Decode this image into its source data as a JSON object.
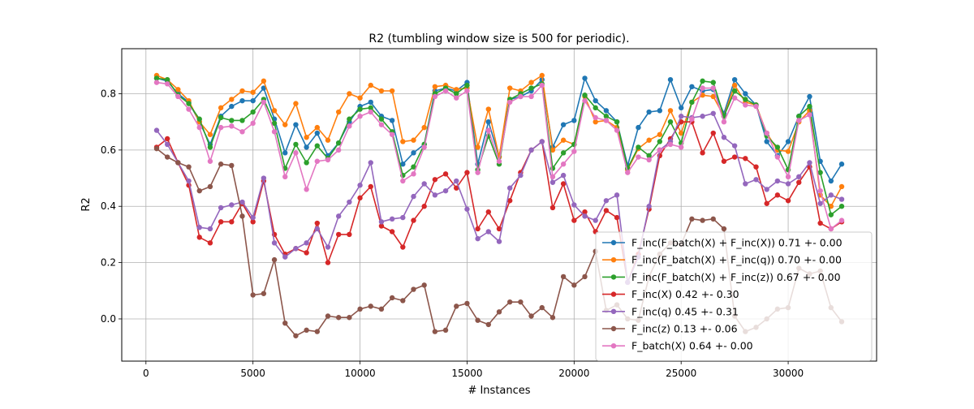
{
  "chart_data": {
    "type": "line",
    "title": "R2 (tumbling window size is 500 for periodic).",
    "xlabel": "# Instances",
    "ylabel": "R2",
    "xlim": [
      -1130,
      34130
    ],
    "ylim": [
      -0.15,
      0.96
    ],
    "xticks": [
      0,
      5000,
      10000,
      15000,
      20000,
      25000,
      30000
    ],
    "xtick_labels": [
      "0",
      "5000",
      "10000",
      "15000",
      "20000",
      "25000",
      "30000"
    ],
    "yticks": [
      0.0,
      0.2,
      0.4,
      0.6,
      0.8
    ],
    "ytick_labels": [
      "0.0",
      "0.2",
      "0.4",
      "0.6",
      "0.8"
    ],
    "grid": true,
    "legend_position": "lower right",
    "x": [
      500,
      1000,
      1500,
      2000,
      2500,
      3000,
      3500,
      4000,
      4500,
      5000,
      5500,
      6000,
      6500,
      7000,
      7500,
      8000,
      8500,
      9000,
      9500,
      10000,
      10500,
      11000,
      11500,
      12000,
      12500,
      13000,
      13500,
      14000,
      14500,
      15000,
      15500,
      16000,
      16500,
      17000,
      17500,
      18000,
      18500,
      19000,
      19500,
      20000,
      20500,
      21000,
      21500,
      22000,
      22500,
      23000,
      23500,
      24000,
      24500,
      25000,
      25500,
      26000,
      26500,
      27000,
      27500,
      28000,
      28500,
      29000,
      29500,
      30000,
      30500,
      31000,
      31500,
      32000,
      32500
    ],
    "series": [
      {
        "name": "F_inc(F_batch(X) + F_inc(X)) 0.71 +- 0.00",
        "color": "#1f77b4",
        "values": [
          0.855,
          0.845,
          0.8,
          0.77,
          0.7,
          0.62,
          0.72,
          0.755,
          0.775,
          0.775,
          0.82,
          0.71,
          0.59,
          0.69,
          0.61,
          0.66,
          0.58,
          0.625,
          0.7,
          0.755,
          0.77,
          0.72,
          0.705,
          0.55,
          0.59,
          0.62,
          0.81,
          0.82,
          0.81,
          0.84,
          0.55,
          0.7,
          0.575,
          0.78,
          0.79,
          0.81,
          0.85,
          0.61,
          0.69,
          0.705,
          0.855,
          0.775,
          0.74,
          0.7,
          0.545,
          0.68,
          0.735,
          0.74,
          0.85,
          0.75,
          0.825,
          0.81,
          0.815,
          0.73,
          0.85,
          0.8,
          0.76,
          0.63,
          0.58,
          0.63,
          0.72,
          0.79,
          0.56,
          0.49,
          0.55
        ]
      },
      {
        "name": "F_inc(F_batch(X) + F_inc(q)) 0.70 +- 0.00",
        "color": "#ff7f0e",
        "values": [
          0.865,
          0.85,
          0.815,
          0.775,
          0.7,
          0.655,
          0.75,
          0.78,
          0.81,
          0.805,
          0.845,
          0.74,
          0.69,
          0.765,
          0.645,
          0.68,
          0.635,
          0.735,
          0.8,
          0.785,
          0.83,
          0.81,
          0.81,
          0.63,
          0.635,
          0.68,
          0.825,
          0.83,
          0.815,
          0.82,
          0.61,
          0.745,
          0.575,
          0.82,
          0.81,
          0.84,
          0.865,
          0.6,
          0.635,
          0.62,
          0.79,
          0.7,
          0.705,
          0.68,
          0.53,
          0.605,
          0.635,
          0.655,
          0.74,
          0.66,
          0.77,
          0.795,
          0.79,
          0.72,
          0.83,
          0.77,
          0.76,
          0.66,
          0.6,
          0.595,
          0.7,
          0.74,
          0.44,
          0.4,
          0.47
        ]
      },
      {
        "name": "F_inc(F_batch(X) + F_inc(z)) 0.67 +- 0.00",
        "color": "#2ca02c",
        "values": [
          0.855,
          0.85,
          0.795,
          0.765,
          0.71,
          0.61,
          0.715,
          0.705,
          0.705,
          0.735,
          0.78,
          0.695,
          0.535,
          0.62,
          0.555,
          0.615,
          0.57,
          0.625,
          0.71,
          0.745,
          0.75,
          0.71,
          0.665,
          0.51,
          0.54,
          0.62,
          0.8,
          0.82,
          0.8,
          0.83,
          0.53,
          0.65,
          0.55,
          0.78,
          0.8,
          0.82,
          0.835,
          0.535,
          0.59,
          0.62,
          0.795,
          0.75,
          0.72,
          0.7,
          0.535,
          0.61,
          0.58,
          0.63,
          0.7,
          0.625,
          0.77,
          0.845,
          0.84,
          0.72,
          0.81,
          0.78,
          0.76,
          0.65,
          0.61,
          0.53,
          0.72,
          0.755,
          0.52,
          0.37,
          0.4
        ]
      },
      {
        "name": "F_inc(X) 0.42 +- 0.30",
        "color": "#d62728",
        "values": [
          0.61,
          0.64,
          0.555,
          0.475,
          0.29,
          0.27,
          0.345,
          0.345,
          0.41,
          0.345,
          0.49,
          0.3,
          0.23,
          0.25,
          0.235,
          0.34,
          0.2,
          0.3,
          0.3,
          0.43,
          0.47,
          0.33,
          0.31,
          0.255,
          0.35,
          0.4,
          0.495,
          0.515,
          0.465,
          0.52,
          0.32,
          0.38,
          0.32,
          0.42,
          0.52,
          0.6,
          0.63,
          0.395,
          0.48,
          0.35,
          0.38,
          0.31,
          0.385,
          0.36,
          0.13,
          0.23,
          0.39,
          0.58,
          0.64,
          0.7,
          0.7,
          0.59,
          0.66,
          0.56,
          0.575,
          0.57,
          0.54,
          0.41,
          0.44,
          0.42,
          0.485,
          0.54,
          0.34,
          0.32,
          0.345
        ]
      },
      {
        "name": "F_inc(q) 0.45 +- 0.31",
        "color": "#9467bd",
        "values": [
          0.67,
          0.62,
          0.555,
          0.49,
          0.325,
          0.32,
          0.395,
          0.405,
          0.415,
          0.36,
          0.5,
          0.27,
          0.22,
          0.25,
          0.27,
          0.32,
          0.255,
          0.365,
          0.415,
          0.475,
          0.555,
          0.345,
          0.355,
          0.36,
          0.435,
          0.48,
          0.44,
          0.455,
          0.49,
          0.39,
          0.285,
          0.31,
          0.275,
          0.465,
          0.51,
          0.6,
          0.63,
          0.485,
          0.51,
          0.405,
          0.365,
          0.35,
          0.42,
          0.44,
          0.13,
          0.22,
          0.4,
          0.6,
          0.63,
          0.72,
          0.715,
          0.72,
          0.73,
          0.645,
          0.615,
          0.48,
          0.495,
          0.46,
          0.49,
          0.48,
          0.505,
          0.555,
          0.41,
          0.44,
          0.425
        ]
      },
      {
        "name": "F_inc(z) 0.13 +- 0.06",
        "color": "#8c564b",
        "values": [
          0.605,
          0.575,
          0.555,
          0.54,
          0.455,
          0.47,
          0.55,
          0.545,
          0.365,
          0.085,
          0.09,
          0.21,
          -0.015,
          -0.06,
          -0.04,
          -0.045,
          0.01,
          0.005,
          0.005,
          0.035,
          0.045,
          0.035,
          0.075,
          0.065,
          0.105,
          0.12,
          -0.045,
          -0.04,
          0.045,
          0.055,
          -0.005,
          -0.02,
          0.025,
          0.06,
          0.06,
          0.01,
          0.04,
          0.005,
          0.15,
          0.12,
          0.15,
          0.24,
          0.03,
          0.05,
          0.0,
          -0.005,
          0.15,
          0.23,
          0.27,
          0.265,
          0.355,
          0.35,
          0.355,
          0.32,
          0.01,
          -0.045,
          -0.03,
          0.0,
          0.035,
          0.04,
          0.18,
          0.16,
          0.17,
          0.04,
          -0.01
        ]
      },
      {
        "name": "F_batch(X) 0.64 +- 0.00",
        "color": "#e377c2",
        "values": [
          0.84,
          0.835,
          0.79,
          0.745,
          0.68,
          0.56,
          0.68,
          0.685,
          0.665,
          0.695,
          0.77,
          0.665,
          0.505,
          0.59,
          0.46,
          0.56,
          0.565,
          0.6,
          0.685,
          0.72,
          0.735,
          0.69,
          0.655,
          0.49,
          0.515,
          0.61,
          0.79,
          0.81,
          0.785,
          0.81,
          0.52,
          0.67,
          0.56,
          0.77,
          0.79,
          0.79,
          0.83,
          0.505,
          0.55,
          0.595,
          0.775,
          0.715,
          0.705,
          0.67,
          0.52,
          0.575,
          0.565,
          0.6,
          0.62,
          0.61,
          0.71,
          0.82,
          0.82,
          0.7,
          0.785,
          0.76,
          0.755,
          0.66,
          0.575,
          0.505,
          0.705,
          0.725,
          0.455,
          0.32,
          0.35
        ]
      }
    ]
  }
}
